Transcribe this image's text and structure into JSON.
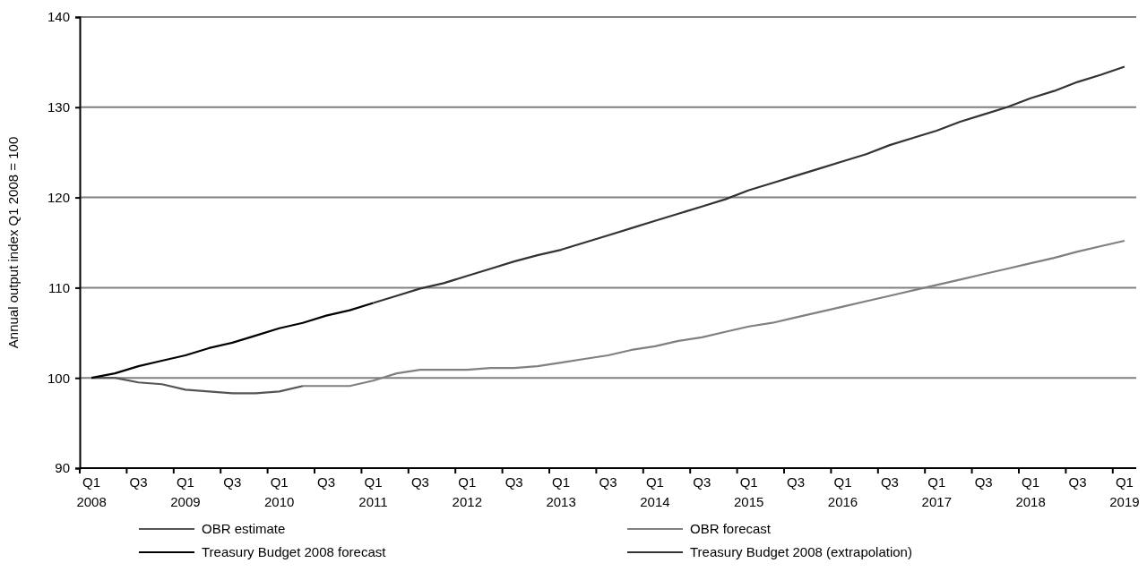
{
  "chart_data": {
    "type": "line",
    "ylabel": "Annual output index Q1 2008 = 100",
    "categories": [
      "Q1\n2008",
      null,
      "Q3",
      null,
      "Q1\n2009",
      null,
      "Q3",
      null,
      "Q1\n2010",
      null,
      "Q3",
      null,
      "Q1\n2011",
      null,
      "Q3",
      null,
      "Q1\n2012",
      null,
      "Q3",
      null,
      "Q1\n2013",
      null,
      "Q3",
      null,
      "Q1\n2014",
      null,
      "Q3",
      null,
      "Q1\n2015",
      null,
      "Q3",
      null,
      "Q1\n2016",
      null,
      "Q3",
      null,
      "Q1\n2017",
      null,
      "Q3",
      null,
      "Q1\n2018",
      null,
      "Q3",
      null,
      "Q1\n2019"
    ],
    "series": [
      {
        "name": "OBR estimate",
        "color": "#555555",
        "values": [
          100,
          100,
          99.5,
          99.3,
          98.7,
          98.5,
          98.3,
          98.3,
          98.5,
          99.1,
          null,
          null,
          null,
          null,
          null,
          null,
          null,
          null,
          null,
          null,
          null,
          null,
          null,
          null,
          null,
          null,
          null,
          null,
          null,
          null,
          null,
          null,
          null,
          null,
          null,
          null,
          null,
          null,
          null,
          null,
          null,
          null,
          null,
          null,
          null
        ]
      },
      {
        "name": "OBR forecast",
        "color": "#808080",
        "values": [
          null,
          null,
          null,
          null,
          null,
          null,
          null,
          null,
          null,
          99.1,
          99.1,
          99.1,
          99.7,
          100.5,
          100.9,
          100.9,
          100.9,
          101.1,
          101.1,
          101.3,
          101.7,
          102.1,
          102.5,
          103.1,
          103.5,
          104.1,
          104.5,
          105.1,
          105.7,
          106.1,
          106.7,
          107.3,
          107.9,
          108.5,
          109.1,
          109.7,
          110.3,
          110.9,
          111.5,
          112.1,
          112.7,
          113.3,
          114.0,
          114.6,
          115.2
        ]
      },
      {
        "name": "Treasury Budget 2008 forecast",
        "color": "#000000",
        "values": [
          100,
          100.5,
          101.3,
          101.9,
          102.5,
          103.3,
          103.9,
          104.7,
          105.5,
          106.1,
          106.9,
          107.5,
          108.3,
          null,
          null,
          null,
          null,
          null,
          null,
          null,
          null,
          null,
          null,
          null,
          null,
          null,
          null,
          null,
          null,
          null,
          null,
          null,
          null,
          null,
          null,
          null,
          null,
          null,
          null,
          null,
          null,
          null,
          null,
          null,
          null
        ]
      },
      {
        "name": "Treasury Budget 2008 (extrapolation)",
        "color": "#333333",
        "values": [
          null,
          null,
          null,
          null,
          null,
          null,
          null,
          null,
          null,
          null,
          null,
          null,
          108.3,
          109.1,
          109.9,
          110.5,
          111.3,
          112.1,
          112.9,
          113.6,
          114.2,
          115.0,
          115.8,
          116.6,
          117.4,
          118.2,
          119.0,
          119.8,
          120.8,
          121.6,
          122.4,
          123.2,
          124.0,
          124.8,
          125.8,
          126.6,
          127.4,
          128.4,
          129.2,
          130.0,
          131.0,
          131.8,
          132.8,
          133.6,
          134.5
        ]
      }
    ],
    "ylim": [
      90,
      140
    ],
    "yticks": [
      90,
      100,
      110,
      120,
      130,
      140
    ],
    "grid": "y",
    "legend": "bottom",
    "marker": "none",
    "line_style": "solid"
  }
}
